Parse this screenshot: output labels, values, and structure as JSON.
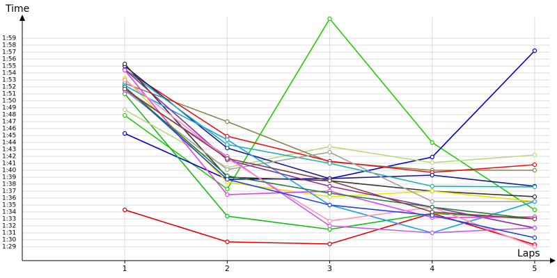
{
  "chart_data": {
    "type": "line",
    "x_label": "Laps",
    "y_label": "Time",
    "x": [
      1,
      2,
      3,
      4,
      5
    ],
    "xlim": [
      0,
      5.15
    ],
    "xticks": [
      1,
      2,
      3,
      4,
      5
    ],
    "ylim": [
      87,
      122
    ],
    "yticks": [
      {
        "value": 89,
        "label": "1:29"
      },
      {
        "value": 90,
        "label": "1:30"
      },
      {
        "value": 91,
        "label": "1:31"
      },
      {
        "value": 92,
        "label": "1:32"
      },
      {
        "value": 93,
        "label": "1:33"
      },
      {
        "value": 94,
        "label": "1:34"
      },
      {
        "value": 95,
        "label": "1:35"
      },
      {
        "value": 96,
        "label": "1:36"
      },
      {
        "value": 97,
        "label": "1:37"
      },
      {
        "value": 98,
        "label": "1:38"
      },
      {
        "value": 99,
        "label": "1:39"
      },
      {
        "value": 100,
        "label": "1:40"
      },
      {
        "value": 101,
        "label": "1:41"
      },
      {
        "value": 102,
        "label": "1:42"
      },
      {
        "value": 103,
        "label": "1:43"
      },
      {
        "value": 104,
        "label": "1:44"
      },
      {
        "value": 105,
        "label": "1:45"
      },
      {
        "value": 106,
        "label": "1:46"
      },
      {
        "value": 107,
        "label": "1:47"
      },
      {
        "value": 108,
        "label": "1:48"
      },
      {
        "value": 109,
        "label": "1:49"
      },
      {
        "value": 110,
        "label": "1:50"
      },
      {
        "value": 111,
        "label": "1:51"
      },
      {
        "value": 112,
        "label": "1:52"
      },
      {
        "value": 113,
        "label": "1:53"
      },
      {
        "value": 114,
        "label": "1:54"
      },
      {
        "value": 115,
        "label": "1:55"
      },
      {
        "value": 116,
        "label": "1:56"
      },
      {
        "value": 117,
        "label": "1:57"
      },
      {
        "value": 118,
        "label": "1:58"
      },
      {
        "value": 119,
        "label": "1:59"
      }
    ],
    "grid": true,
    "series": [
      {
        "color": "#e00000",
        "values": [
          94.3,
          89.7,
          89.4,
          93.8,
          89.3
        ]
      },
      {
        "color": "#22cc00",
        "values": [
          107.9,
          97.3,
          121.8,
          104,
          94.3
        ]
      },
      {
        "color": "#0000cc",
        "values": [
          105.3,
          98.7,
          98.8,
          101.9,
          117.2
        ]
      },
      {
        "color": "#11bb11",
        "values": [
          111,
          93.4,
          91.5,
          93.8,
          93
        ]
      },
      {
        "color": "#b8d880",
        "values": [
          108.7,
          100.4,
          103.4,
          101.1,
          102.2
        ]
      },
      {
        "color": "#8b8050",
        "values": [
          112.5,
          107,
          101.2,
          100,
          100
        ]
      },
      {
        "color": "#e81010",
        "values": [
          114.5,
          104.9,
          101.3,
          99.7,
          100.8
        ]
      },
      {
        "color": "#1a1a8a",
        "values": [
          115,
          103.2,
          98.8,
          99.3,
          97.7
        ]
      },
      {
        "color": "#20b0b0",
        "values": [
          114.5,
          103.7,
          101,
          97.7,
          97.6
        ]
      },
      {
        "color": "#333333",
        "values": [
          115.3,
          99,
          98.5,
          97,
          96.2
        ]
      },
      {
        "color": "#e8e000",
        "values": [
          113.2,
          98.3,
          96.2,
          97,
          95.5
        ]
      },
      {
        "color": "#a0a0a0",
        "values": [
          111.5,
          100.1,
          102.6,
          95.5,
          95.5
        ]
      },
      {
        "color": "#20a0e8",
        "values": [
          112.2,
          104.4,
          95,
          91,
          95.5
        ]
      },
      {
        "color": "#8a30a0",
        "values": [
          114.5,
          101.5,
          97.7,
          94.7,
          91.7
        ]
      },
      {
        "color": "#e040e0",
        "values": [
          114.4,
          96.5,
          97,
          93.2,
          93.3
        ]
      },
      {
        "color": "#c060e0",
        "values": [
          111.5,
          102,
          92,
          91,
          91.7
        ]
      },
      {
        "color": "#ff90c0",
        "values": [
          113,
          101.7,
          92.7,
          94.7,
          89
        ]
      },
      {
        "color": "#2040e0",
        "values": [
          112,
          98.7,
          95,
          93.5,
          90.3
        ]
      },
      {
        "color": "#208040",
        "values": [
          112,
          99.2,
          96.7,
          94.7,
          93
        ]
      },
      {
        "color": "#804040",
        "values": [
          111.7,
          101.7,
          98.5,
          94,
          93
        ]
      }
    ]
  }
}
